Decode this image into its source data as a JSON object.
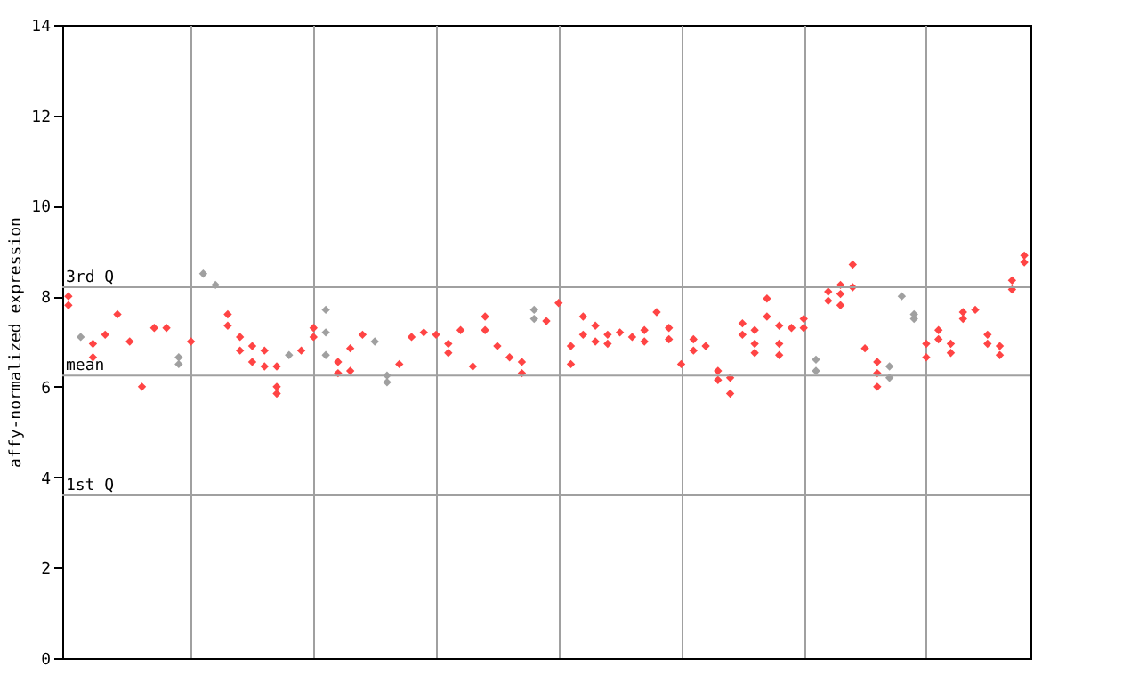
{
  "chart_data": {
    "type": "scatter",
    "ylabel": "affy-normalized expression",
    "ylim": [
      0,
      14
    ],
    "yticks": [
      0,
      2,
      4,
      6,
      8,
      10,
      12,
      14
    ],
    "tick_labels": "y",
    "grid": "x",
    "marker": "diamond",
    "legend": false,
    "categories": [
      null,
      null,
      null,
      null,
      null,
      null,
      null,
      null,
      null,
      null,
      null,
      null,
      null,
      null,
      null,
      null,
      null,
      null,
      null,
      null,
      null,
      null,
      null,
      null,
      null,
      null,
      null,
      null,
      null,
      null,
      null,
      null,
      null,
      null,
      null,
      null,
      null,
      null,
      null,
      null,
      null,
      null,
      null,
      null,
      null,
      null,
      null,
      null,
      null,
      null,
      null,
      null,
      null,
      null,
      null,
      null,
      null,
      null,
      null,
      null,
      null,
      null,
      null,
      null,
      null,
      null,
      null,
      null,
      null,
      null,
      null,
      null,
      null,
      null,
      null,
      null,
      null,
      null,
      null
    ],
    "ref_lines": [
      {
        "axis": "y",
        "value": 8.2,
        "label": "3rd Q",
        "color": "#a0a0a0"
      },
      {
        "axis": "y",
        "value": 6.25,
        "label": "mean",
        "color": "#a0a0a0"
      },
      {
        "axis": "y",
        "value": 3.6,
        "label": "1st Q",
        "color": "#a0a0a0"
      }
    ],
    "series": [
      {
        "color": "#ff4444",
        "values": [
          8.0,
          null,
          6.95,
          7.15,
          7.6,
          7.0,
          6.0,
          7.3,
          7.3,
          null,
          7.0,
          null,
          null,
          7.6,
          7.1,
          6.9,
          6.8,
          6.45,
          null,
          6.8,
          7.3,
          null,
          6.55,
          6.85,
          7.15,
          null,
          null,
          6.5,
          7.1,
          7.2,
          7.15,
          6.95,
          7.25,
          6.45,
          7.55,
          6.9,
          6.65,
          6.55,
          null,
          7.45,
          7.85,
          6.9,
          7.55,
          7.35,
          7.15,
          7.2,
          7.1,
          7.25,
          7.65,
          7.3,
          6.5,
          7.05,
          6.9,
          6.35,
          6.2,
          7.4,
          7.25,
          7.95,
          7.35,
          7.3,
          7.5,
          null,
          8.1,
          8.25,
          8.7,
          6.85,
          6.55,
          null,
          null,
          null,
          6.95,
          7.25,
          6.95,
          7.65,
          7.7,
          7.15,
          6.9,
          8.35,
          8.9
        ]
      },
      {
        "color": "#ff4444",
        "values": [
          7.8,
          null,
          6.65,
          null,
          null,
          null,
          null,
          null,
          null,
          null,
          null,
          null,
          null,
          7.35,
          6.8,
          6.55,
          6.45,
          6.0,
          null,
          null,
          7.1,
          null,
          6.3,
          6.35,
          null,
          null,
          null,
          null,
          null,
          null,
          null,
          6.75,
          null,
          null,
          7.25,
          null,
          null,
          6.3,
          null,
          null,
          null,
          6.5,
          7.15,
          7.0,
          6.95,
          null,
          null,
          7.0,
          null,
          7.05,
          null,
          6.8,
          null,
          6.15,
          5.85,
          7.15,
          6.95,
          7.55,
          6.95,
          null,
          7.3,
          null,
          7.9,
          8.05,
          8.2,
          null,
          6.3,
          null,
          null,
          null,
          6.65,
          7.05,
          6.75,
          7.5,
          null,
          6.95,
          6.7,
          8.15,
          8.75
        ]
      },
      {
        "color": "#ff4444",
        "values": [
          null,
          null,
          null,
          null,
          null,
          null,
          null,
          null,
          null,
          null,
          null,
          null,
          null,
          null,
          null,
          null,
          null,
          5.85,
          null,
          null,
          null,
          null,
          null,
          null,
          null,
          null,
          null,
          null,
          null,
          null,
          null,
          null,
          null,
          null,
          null,
          null,
          null,
          null,
          null,
          null,
          null,
          null,
          null,
          null,
          null,
          null,
          null,
          null,
          null,
          null,
          null,
          null,
          null,
          null,
          null,
          null,
          6.75,
          null,
          6.7,
          null,
          null,
          null,
          null,
          7.8,
          null,
          null,
          6.0,
          null,
          null,
          null,
          null,
          null,
          null,
          null,
          null,
          null,
          null,
          null,
          null
        ]
      },
      {
        "color": "#a0a0a0",
        "values": [
          null,
          7.1,
          null,
          null,
          null,
          null,
          null,
          null,
          null,
          6.65,
          null,
          8.5,
          8.25,
          null,
          null,
          null,
          null,
          null,
          6.7,
          null,
          null,
          7.7,
          null,
          null,
          null,
          7.0,
          6.25,
          null,
          null,
          null,
          null,
          null,
          null,
          null,
          null,
          null,
          null,
          null,
          7.7,
          null,
          null,
          null,
          null,
          null,
          null,
          null,
          null,
          null,
          null,
          null,
          null,
          null,
          null,
          null,
          null,
          null,
          null,
          null,
          null,
          null,
          null,
          6.6,
          null,
          null,
          null,
          null,
          null,
          6.45,
          8.0,
          7.6,
          null,
          null,
          null,
          null,
          null,
          null,
          null,
          null,
          null
        ]
      },
      {
        "color": "#a0a0a0",
        "values": [
          null,
          null,
          null,
          null,
          null,
          null,
          null,
          null,
          null,
          6.5,
          null,
          null,
          null,
          null,
          null,
          null,
          null,
          null,
          null,
          null,
          null,
          7.2,
          null,
          null,
          null,
          null,
          6.1,
          null,
          null,
          null,
          null,
          null,
          null,
          null,
          null,
          null,
          null,
          null,
          7.5,
          null,
          null,
          null,
          null,
          null,
          null,
          null,
          null,
          null,
          null,
          null,
          null,
          null,
          null,
          null,
          null,
          null,
          null,
          null,
          null,
          null,
          null,
          6.35,
          null,
          null,
          null,
          null,
          null,
          6.2,
          null,
          7.5,
          null,
          null,
          null,
          null,
          null,
          null,
          null,
          null,
          null
        ]
      },
      {
        "color": "#a0a0a0",
        "values": [
          null,
          null,
          null,
          null,
          null,
          null,
          null,
          null,
          null,
          null,
          null,
          null,
          null,
          null,
          null,
          null,
          null,
          null,
          null,
          null,
          null,
          6.7,
          null,
          null,
          null,
          null,
          null,
          null,
          null,
          null,
          null,
          null,
          null,
          null,
          null,
          null,
          null,
          null,
          null,
          null,
          null,
          null,
          null,
          null,
          null,
          null,
          null,
          null,
          null,
          null,
          null,
          null,
          null,
          null,
          null,
          null,
          null,
          null,
          null,
          null,
          null,
          null,
          null,
          null,
          null,
          null,
          null,
          null,
          null,
          null,
          null,
          null,
          null,
          null,
          null,
          null,
          null,
          null,
          null
        ]
      }
    ]
  }
}
